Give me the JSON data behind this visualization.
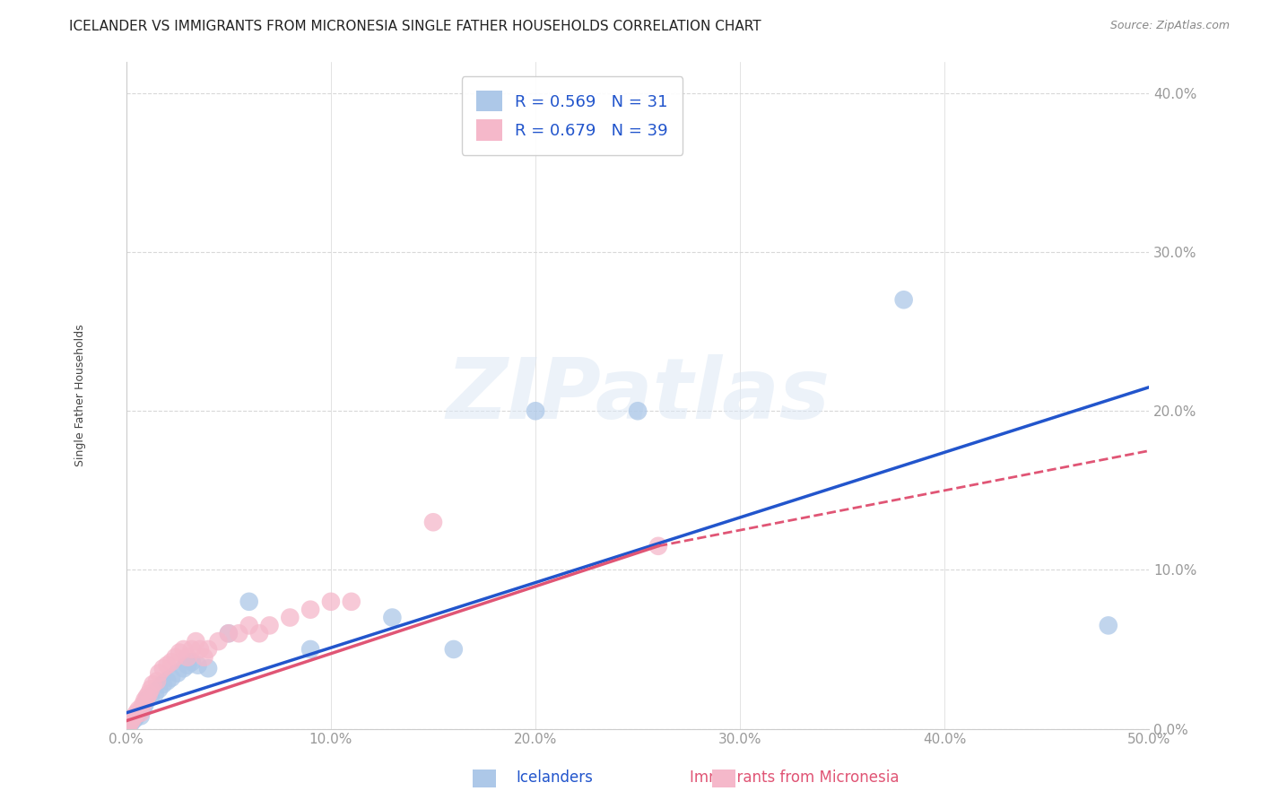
{
  "title": "ICELANDER VS IMMIGRANTS FROM MICRONESIA SINGLE FATHER HOUSEHOLDS CORRELATION CHART",
  "source": "Source: ZipAtlas.com",
  "ylabel": "Single Father Households",
  "xlim": [
    0,
    0.5
  ],
  "ylim": [
    0,
    0.42
  ],
  "xticks": [
    0.0,
    0.1,
    0.2,
    0.3,
    0.4,
    0.5
  ],
  "yticks": [
    0.0,
    0.1,
    0.2,
    0.3,
    0.4
  ],
  "background_color": "#ffffff",
  "grid_color": "#d8d8d8",
  "watermark": "ZIPatlas",
  "series": [
    {
      "name": "Icelanders",
      "color": "#adc8e8",
      "line_color": "#2255cc",
      "R": 0.569,
      "N": 31,
      "x": [
        0.001,
        0.002,
        0.003,
        0.004,
        0.005,
        0.006,
        0.007,
        0.008,
        0.009,
        0.01,
        0.012,
        0.014,
        0.016,
        0.018,
        0.02,
        0.022,
        0.025,
        0.028,
        0.03,
        0.032,
        0.035,
        0.04,
        0.05,
        0.06,
        0.09,
        0.13,
        0.16,
        0.2,
        0.25,
        0.38,
        0.48
      ],
      "y": [
        0.001,
        0.003,
        0.005,
        0.006,
        0.008,
        0.01,
        0.008,
        0.012,
        0.015,
        0.018,
        0.02,
        0.022,
        0.025,
        0.028,
        0.03,
        0.032,
        0.035,
        0.038,
        0.04,
        0.042,
        0.04,
        0.038,
        0.06,
        0.08,
        0.05,
        0.07,
        0.05,
        0.2,
        0.2,
        0.27,
        0.065
      ]
    },
    {
      "name": "Immigrants from Micronesia",
      "color": "#f5b8ca",
      "line_color": "#e05575",
      "R": 0.679,
      "N": 39,
      "x": [
        0.001,
        0.002,
        0.003,
        0.004,
        0.005,
        0.006,
        0.007,
        0.008,
        0.009,
        0.01,
        0.011,
        0.012,
        0.013,
        0.015,
        0.016,
        0.018,
        0.02,
        0.022,
        0.024,
        0.026,
        0.028,
        0.03,
        0.032,
        0.034,
        0.036,
        0.038,
        0.04,
        0.045,
        0.05,
        0.055,
        0.06,
        0.065,
        0.07,
        0.08,
        0.09,
        0.1,
        0.11,
        0.15,
        0.26
      ],
      "y": [
        0.002,
        0.004,
        0.006,
        0.008,
        0.01,
        0.012,
        0.01,
        0.015,
        0.018,
        0.02,
        0.022,
        0.025,
        0.028,
        0.03,
        0.035,
        0.038,
        0.04,
        0.042,
        0.045,
        0.048,
        0.05,
        0.045,
        0.05,
        0.055,
        0.05,
        0.045,
        0.05,
        0.055,
        0.06,
        0.06,
        0.065,
        0.06,
        0.065,
        0.07,
        0.075,
        0.08,
        0.08,
        0.13,
        0.115
      ]
    }
  ],
  "blue_line": {
    "x_start": 0.0,
    "y_start": 0.01,
    "x_end": 0.5,
    "y_end": 0.215
  },
  "pink_line_solid": {
    "x_start": 0.0,
    "y_start": 0.005,
    "x_end": 0.26,
    "y_end": 0.115
  },
  "pink_line_dashed": {
    "x_start": 0.26,
    "y_start": 0.115,
    "x_end": 0.5,
    "y_end": 0.175
  },
  "title_fontsize": 11,
  "axis_label_fontsize": 9,
  "tick_fontsize": 11
}
